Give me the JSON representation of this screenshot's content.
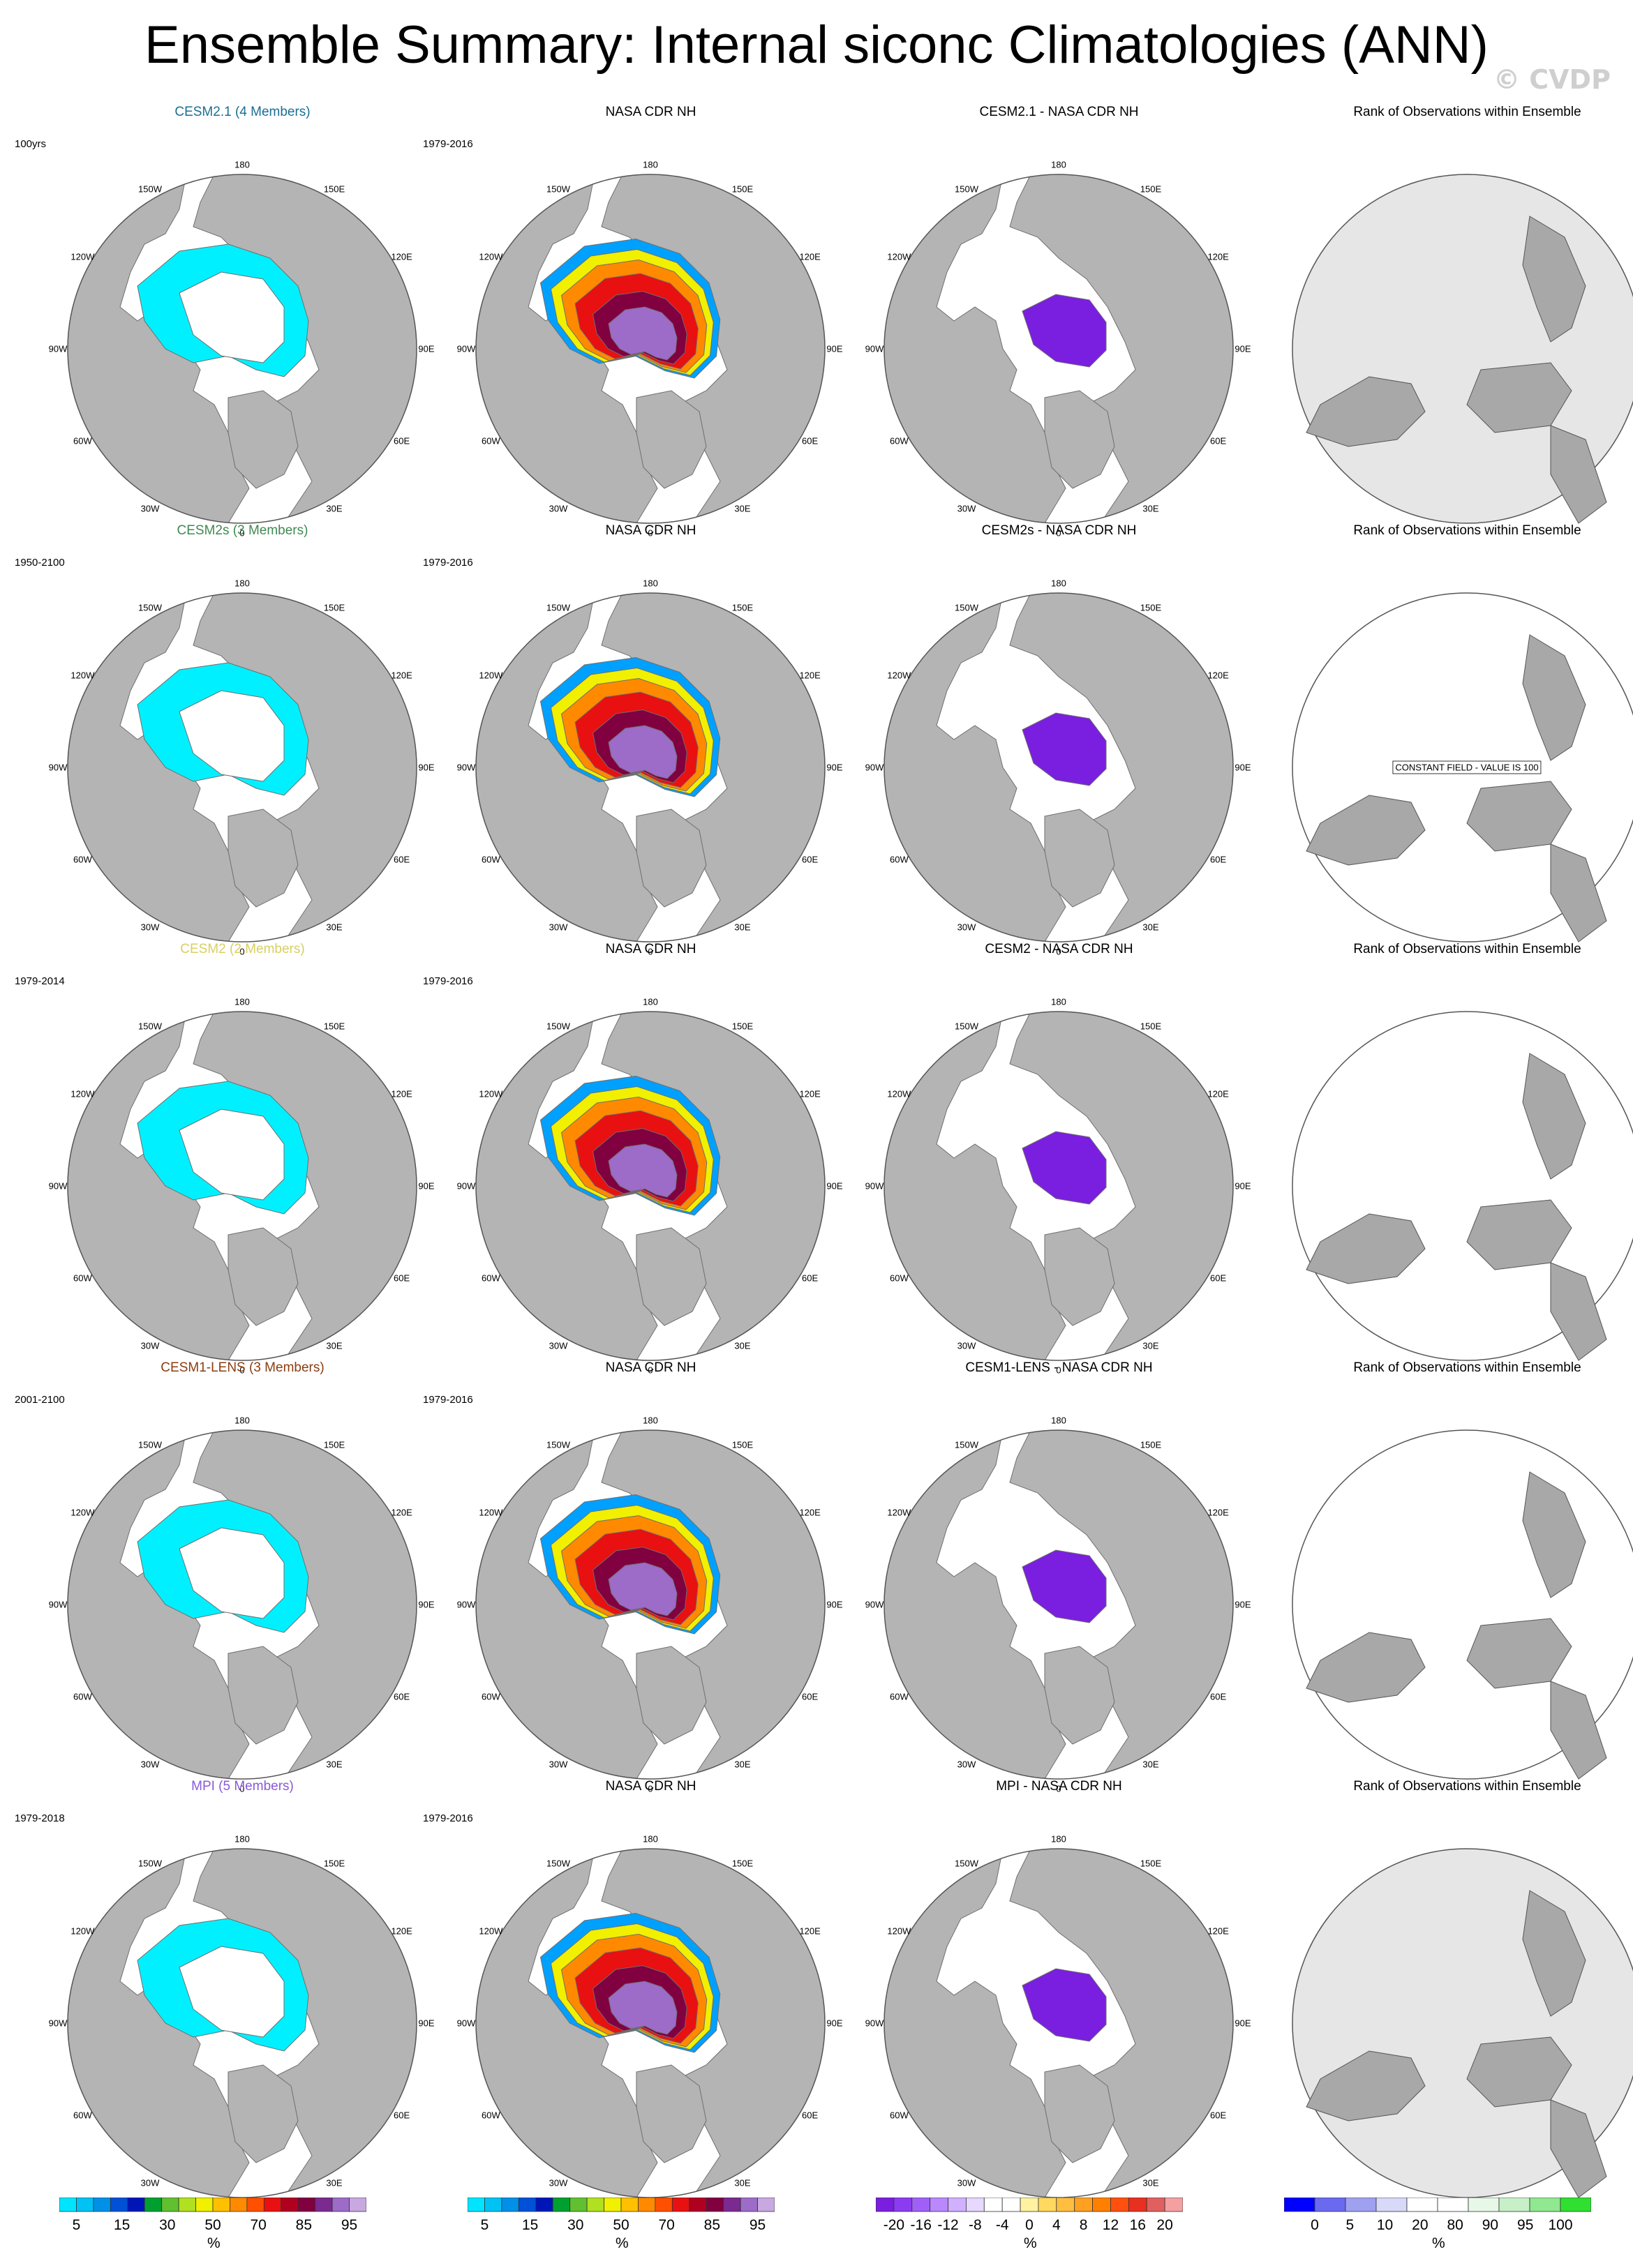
{
  "title": "Ensemble Summary: Internal siconc Climatologies (ANN)",
  "watermark": "© CVDP",
  "longitude_labels": [
    "180",
    "150E",
    "120E",
    "90E",
    "60E",
    "30E",
    "0",
    "30W",
    "60W",
    "90W",
    "120W",
    "150W"
  ],
  "rows": [
    {
      "model": {
        "title": "CESM2.1 (4 Members)",
        "color": "#1a6f94",
        "period": "100yrs"
      },
      "obs": {
        "title": "NASA CDR NH",
        "period": "1979-2016"
      },
      "diff": {
        "title": "CESM2.1 - NASA CDR NH"
      },
      "rank": {
        "title": "Rank of Observations within Ensemble",
        "background": "grey",
        "note": ""
      }
    },
    {
      "model": {
        "title": "CESM2s (3 Members)",
        "color": "#3f8a52",
        "period": "1950-2100"
      },
      "obs": {
        "title": "NASA CDR NH",
        "period": "1979-2016"
      },
      "diff": {
        "title": "CESM2s - NASA CDR NH"
      },
      "rank": {
        "title": "Rank of Observations within Ensemble",
        "background": "white",
        "note": "CONSTANT FIELD - VALUE IS 100"
      }
    },
    {
      "model": {
        "title": "CESM2 (2 Members)",
        "color": "#d8cf62",
        "period": "1979-2014"
      },
      "obs": {
        "title": "NASA CDR NH",
        "period": "1979-2016"
      },
      "diff": {
        "title": "CESM2 - NASA CDR NH"
      },
      "rank": {
        "title": "Rank of Observations within Ensemble",
        "background": "white",
        "note": ""
      }
    },
    {
      "model": {
        "title": "CESM1-LENS (3 Members)",
        "color": "#8a3e10",
        "period": "2001-2100"
      },
      "obs": {
        "title": "NASA CDR NH",
        "period": "1979-2016"
      },
      "diff": {
        "title": "CESM1-LENS - NASA CDR NH"
      },
      "rank": {
        "title": "Rank of Observations within Ensemble",
        "background": "white",
        "note": ""
      }
    },
    {
      "model": {
        "title": "MPI (5 Members)",
        "color": "#8a5ad6",
        "period": "1979-2018"
      },
      "obs": {
        "title": "NASA CDR NH",
        "period": "1979-2016"
      },
      "diff": {
        "title": "MPI - NASA CDR NH"
      },
      "rank": {
        "title": "Rank of Observations within Ensemble",
        "background": "grey",
        "note": ""
      }
    }
  ],
  "colorbars": {
    "concentration": {
      "unit": "%",
      "colors": [
        "#00e5ff",
        "#00c2f5",
        "#0090e8",
        "#0050d8",
        "#0015b8",
        "#00a030",
        "#60c030",
        "#b0e020",
        "#f0f000",
        "#ffc000",
        "#ff8a00",
        "#ff5000",
        "#e81010",
        "#b00020",
        "#800040",
        "#7a2a90",
        "#9c6cc8",
        "#c8a8e0"
      ],
      "ticks": [
        "5",
        "15",
        "30",
        "50",
        "70",
        "85",
        "95"
      ]
    },
    "difference": {
      "unit": "%",
      "colors": [
        "#7a1ee0",
        "#8c3cf0",
        "#a060f8",
        "#b888fc",
        "#d0b0ff",
        "#e6d8ff",
        "#ffffff",
        "#ffffff",
        "#fff2a0",
        "#ffd860",
        "#ffbe40",
        "#ffa020",
        "#ff8000",
        "#ff5010",
        "#e83020",
        "#e06060",
        "#f4a0a0"
      ],
      "ticks": [
        "-20",
        "-16",
        "-12",
        "-8",
        "-4",
        "0",
        "4",
        "8",
        "12",
        "16",
        "20"
      ]
    },
    "rank": {
      "unit": "%",
      "colors": [
        "#0000ff",
        "#6a6af0",
        "#a0a0f0",
        "#d8d8f8",
        "#ffffff",
        "#ffffff",
        "#e8f8e8",
        "#c8f0c8",
        "#90e890",
        "#30e030"
      ],
      "ticks": [
        "0",
        "5",
        "10",
        "20",
        "80",
        "90",
        "95",
        "100"
      ]
    }
  }
}
